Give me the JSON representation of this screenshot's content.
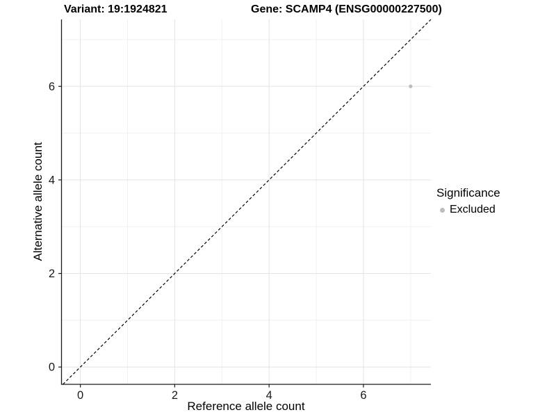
{
  "chart_data": {
    "type": "scatter",
    "title_left": "Variant: 19:1924821",
    "title_right": "Gene: SCAMP4 (ENSG00000227500)",
    "xlabel": "Reference allele count",
    "ylabel": "Alternative allele count",
    "xlim": [
      -0.4,
      7.43
    ],
    "ylim": [
      -0.37,
      7.43
    ],
    "x_major_ticks": [
      0,
      2,
      4,
      6
    ],
    "x_minor_ticks": [
      1,
      3,
      5,
      7
    ],
    "y_major_ticks": [
      0,
      2,
      4,
      6
    ],
    "y_minor_ticks": [
      1,
      3,
      5,
      7
    ],
    "grid": true,
    "legend_position": "right",
    "identity_line": {
      "slope": 1,
      "intercept": 0,
      "style": "dashed",
      "color": "#000000"
    },
    "series": [
      {
        "name": "Excluded",
        "color": "#bcbcbc",
        "points": [
          {
            "x": 7,
            "y": 6
          }
        ]
      }
    ],
    "legend": {
      "title": "Significance",
      "items": [
        {
          "label": "Excluded",
          "color": "#bcbcbc"
        }
      ]
    },
    "colors": {
      "grid_major": "#e3e3e3",
      "grid_minor": "#f1f1f1",
      "axis_line": "#1a1a1a",
      "tick_text": "#1a1a1a",
      "background": "#ffffff"
    }
  }
}
